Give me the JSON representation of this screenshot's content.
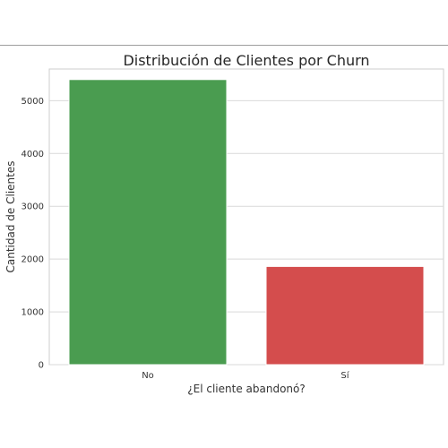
{
  "chart_data": {
    "type": "bar",
    "title": "Distribución de Clientes por Churn",
    "xlabel": "¿El cliente abandonó?",
    "ylabel": "Cantidad de Clientes",
    "categories": [
      "No",
      "Sí"
    ],
    "values": [
      5400,
      1860
    ],
    "colors": [
      "#4a9c50",
      "#d44d4d"
    ],
    "ylim": [
      0,
      5600
    ],
    "yticks": [
      0,
      1000,
      2000,
      3000,
      4000,
      5000
    ],
    "grid": true,
    "gridColor": "#d9d9d9",
    "legend": "none"
  }
}
